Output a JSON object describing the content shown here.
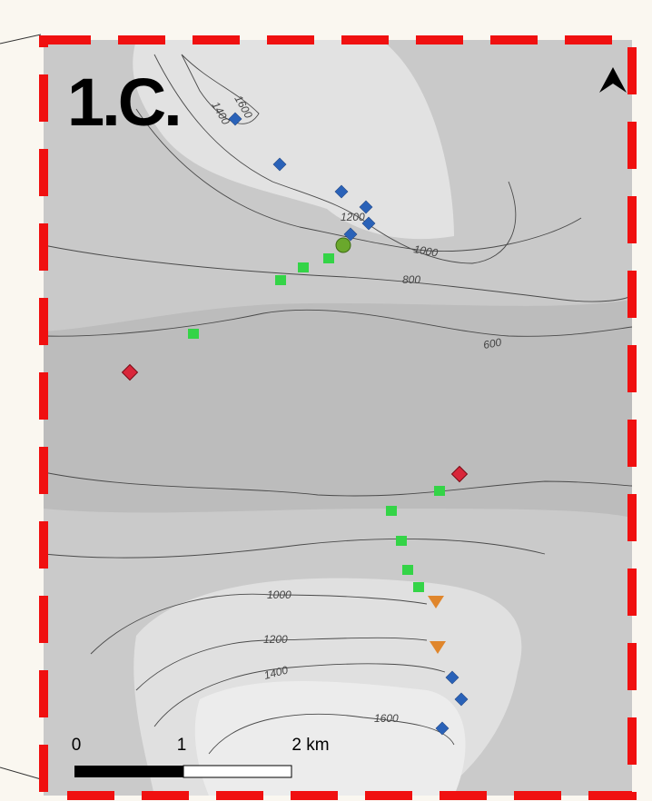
{
  "panel_label": "1.C.",
  "contour_labels": [
    "1400",
    "1600",
    "1200",
    "1000",
    "800",
    "600",
    "1000",
    "1200",
    "1400",
    "1600"
  ],
  "scale_bar": {
    "labels": [
      "0",
      "1",
      "2 km"
    ]
  }
}
